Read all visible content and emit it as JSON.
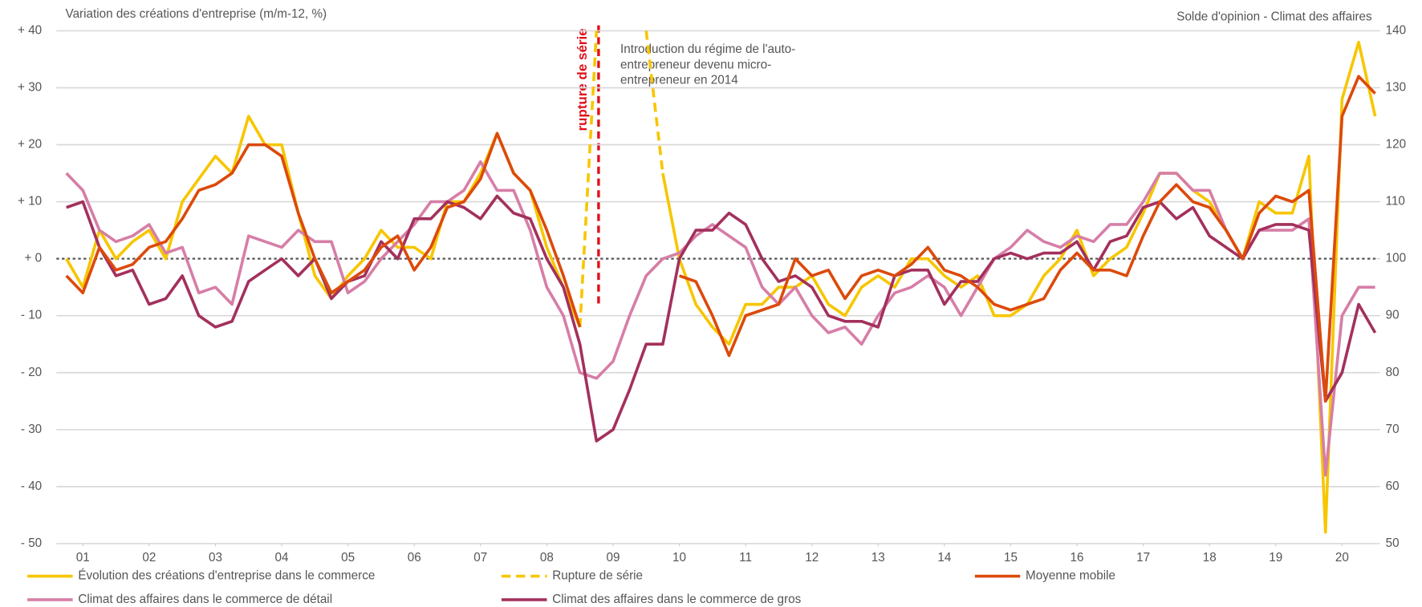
{
  "chart_data": {
    "type": "line",
    "y_title": "Variation des créations d'entreprise (m/m-12, %)",
    "y2_title": "Solde d'opinion - Climat des affaires",
    "annotation": [
      "Introduction du régime de l'auto-",
      "entrepreneur devenu micro-",
      "entrepreneur en 2014"
    ],
    "break_label": "rupture de série",
    "x": [
      2000.75,
      2001,
      2001.25,
      2001.5,
      2001.75,
      2002,
      2002.25,
      2002.5,
      2002.75,
      2003,
      2003.25,
      2003.5,
      2003.75,
      2004,
      2004.25,
      2004.5,
      2004.75,
      2005,
      2005.25,
      2005.5,
      2005.75,
      2006,
      2006.25,
      2006.5,
      2006.75,
      2007,
      2007.25,
      2007.5,
      2007.75,
      2008,
      2008.25,
      2008.5,
      2008.75,
      2009,
      2009.25,
      2009.5,
      2009.75,
      2010,
      2010.25,
      2010.5,
      2010.75,
      2011,
      2011.25,
      2011.5,
      2011.75,
      2012,
      2012.25,
      2012.5,
      2012.75,
      2013,
      2013.25,
      2013.5,
      2013.75,
      2014,
      2014.25,
      2014.5,
      2014.75,
      2015,
      2015.25,
      2015.5,
      2015.75,
      2016,
      2016.25,
      2016.5,
      2016.75,
      2017,
      2017.25,
      2017.5,
      2017.75,
      2018,
      2018.25,
      2018.5,
      2018.75,
      2019,
      2019.25,
      2019.5,
      2019.75,
      2020,
      2020.25,
      2020.5
    ],
    "xlim": [
      2000.6,
      2020.52
    ],
    "xticks": [
      {
        "value": 2001,
        "label": "01"
      },
      {
        "value": 2002,
        "label": "02"
      },
      {
        "value": 2003,
        "label": "03"
      },
      {
        "value": 2004,
        "label": "04"
      },
      {
        "value": 2005,
        "label": "05"
      },
      {
        "value": 2006,
        "label": "06"
      },
      {
        "value": 2007,
        "label": "07"
      },
      {
        "value": 2008,
        "label": "08"
      },
      {
        "value": 2009,
        "label": "09"
      },
      {
        "value": 2010,
        "label": "10"
      },
      {
        "value": 2011,
        "label": "11"
      },
      {
        "value": 2012,
        "label": "12"
      },
      {
        "value": 2013,
        "label": "13"
      },
      {
        "value": 2014,
        "label": "14"
      },
      {
        "value": 2015,
        "label": "15"
      },
      {
        "value": 2016,
        "label": "16"
      },
      {
        "value": 2017,
        "label": "17"
      },
      {
        "value": 2018,
        "label": "18"
      },
      {
        "value": 2019,
        "label": "19"
      },
      {
        "value": 2020,
        "label": "20"
      }
    ],
    "ylim": [
      -50,
      40
    ],
    "yticks": [
      {
        "value": 40,
        "label": "+ 40"
      },
      {
        "value": 30,
        "label": "+ 30"
      },
      {
        "value": 20,
        "label": "+ 20"
      },
      {
        "value": 10,
        "label": "+ 10"
      },
      {
        "value": 0,
        "label": "+ 0"
      },
      {
        "value": -10,
        "label": "- 10"
      },
      {
        "value": -20,
        "label": "- 20"
      },
      {
        "value": -30,
        "label": "- 30"
      },
      {
        "value": -40,
        "label": "- 40"
      },
      {
        "value": -50,
        "label": "- 50"
      }
    ],
    "y2lim": [
      50,
      140
    ],
    "y2ticks": [
      140,
      130,
      120,
      110,
      100,
      90,
      80,
      70,
      60,
      50
    ],
    "grid": true,
    "series": [
      {
        "name": "Évolution des créations d'entreprise dans le commerce",
        "color": "#f7c600",
        "values": [
          0,
          -5,
          5,
          0,
          3,
          5,
          0,
          10,
          14,
          18,
          15,
          25,
          20,
          20,
          8,
          -3,
          -7,
          -3,
          0,
          5,
          2,
          2,
          0,
          10,
          10,
          15,
          22,
          15,
          12,
          2,
          -5,
          -12,
          null,
          null,
          null,
          null,
          15,
          0,
          -8,
          -12,
          -15,
          -8,
          -8,
          -5,
          -5,
          -3,
          -8,
          -10,
          -5,
          -3,
          -5,
          0,
          0,
          -3,
          -5,
          -3,
          -10,
          -10,
          -8,
          -3,
          0,
          5,
          -3,
          0,
          2,
          8,
          15,
          15,
          12,
          10,
          5,
          0,
          10,
          8,
          8,
          18,
          -48,
          28,
          38,
          25
        ]
      },
      {
        "name": "Rupture de série",
        "color": "#f7c600",
        "dash": true,
        "values": [
          null,
          null,
          null,
          null,
          null,
          null,
          null,
          null,
          null,
          null,
          null,
          null,
          null,
          null,
          null,
          null,
          null,
          null,
          null,
          null,
          null,
          null,
          null,
          null,
          null,
          null,
          null,
          null,
          null,
          null,
          null,
          -12,
          40,
          null,
          null,
          40,
          15,
          null,
          null,
          null,
          null,
          null,
          null,
          null,
          null,
          null,
          null,
          null,
          null,
          null,
          null,
          null,
          null,
          null,
          null,
          null,
          null,
          null,
          null,
          null,
          null,
          null,
          null,
          null,
          null,
          null,
          null,
          null,
          null,
          null,
          null,
          null,
          null,
          null,
          null,
          null,
          null,
          null,
          null,
          null
        ]
      },
      {
        "name": "Moyenne mobile",
        "color": "#dc4a0b",
        "values": [
          -3,
          -6,
          2,
          -2,
          -1,
          2,
          3,
          7,
          12,
          13,
          15,
          20,
          20,
          18,
          8,
          0,
          -6,
          -4,
          -2,
          2,
          4,
          -2,
          2,
          9,
          10,
          14,
          22,
          15,
          12,
          5,
          -3,
          -12,
          null,
          null,
          null,
          null,
          null,
          -3,
          -4,
          -10,
          -17,
          -10,
          -9,
          -8,
          0,
          -3,
          -2,
          -7,
          -3,
          -2,
          -3,
          -1,
          2,
          -2,
          -3,
          -5,
          -8,
          -9,
          -8,
          -7,
          -2,
          1,
          -2,
          -2,
          -3,
          4,
          10,
          13,
          10,
          9,
          5,
          0,
          8,
          11,
          10,
          12,
          -25,
          25,
          32,
          29
        ]
      },
      {
        "name": "Climat des affaires dans le commerce de détail",
        "color": "#d67ea7",
        "axis": "y2",
        "values": [
          115,
          112,
          105,
          103,
          104,
          106,
          101,
          102,
          94,
          95,
          92,
          104,
          103,
          102,
          105,
          103,
          103,
          94,
          96,
          100,
          103,
          106,
          110,
          110,
          112,
          117,
          112,
          112,
          105,
          95,
          90,
          80,
          79,
          82,
          90,
          97,
          100,
          101,
          104,
          106,
          104,
          102,
          95,
          92,
          95,
          90,
          87,
          88,
          85,
          90,
          94,
          95,
          97,
          95,
          90,
          95,
          100,
          102,
          105,
          103,
          102,
          104,
          103,
          106,
          106,
          110,
          115,
          115,
          112,
          112,
          105,
          100,
          105,
          105,
          105,
          107,
          62,
          90,
          95,
          95
        ]
      },
      {
        "name": "Climat des affaires dans le commerce de gros",
        "color": "#a3305d",
        "axis": "y2",
        "values": [
          109,
          110,
          102,
          97,
          98,
          92,
          93,
          97,
          90,
          88,
          89,
          96,
          98,
          100,
          97,
          100,
          93,
          96,
          97,
          103,
          100,
          107,
          107,
          110,
          109,
          107,
          111,
          108,
          107,
          100,
          95,
          85,
          68,
          70,
          77,
          85,
          85,
          100,
          105,
          105,
          108,
          106,
          100,
          96,
          97,
          95,
          90,
          89,
          89,
          88,
          97,
          98,
          98,
          92,
          96,
          96,
          100,
          101,
          100,
          101,
          101,
          103,
          98,
          103,
          104,
          109,
          110,
          107,
          109,
          104,
          102,
          100,
          105,
          106,
          106,
          105,
          75,
          80,
          92,
          87
        ]
      }
    ]
  }
}
